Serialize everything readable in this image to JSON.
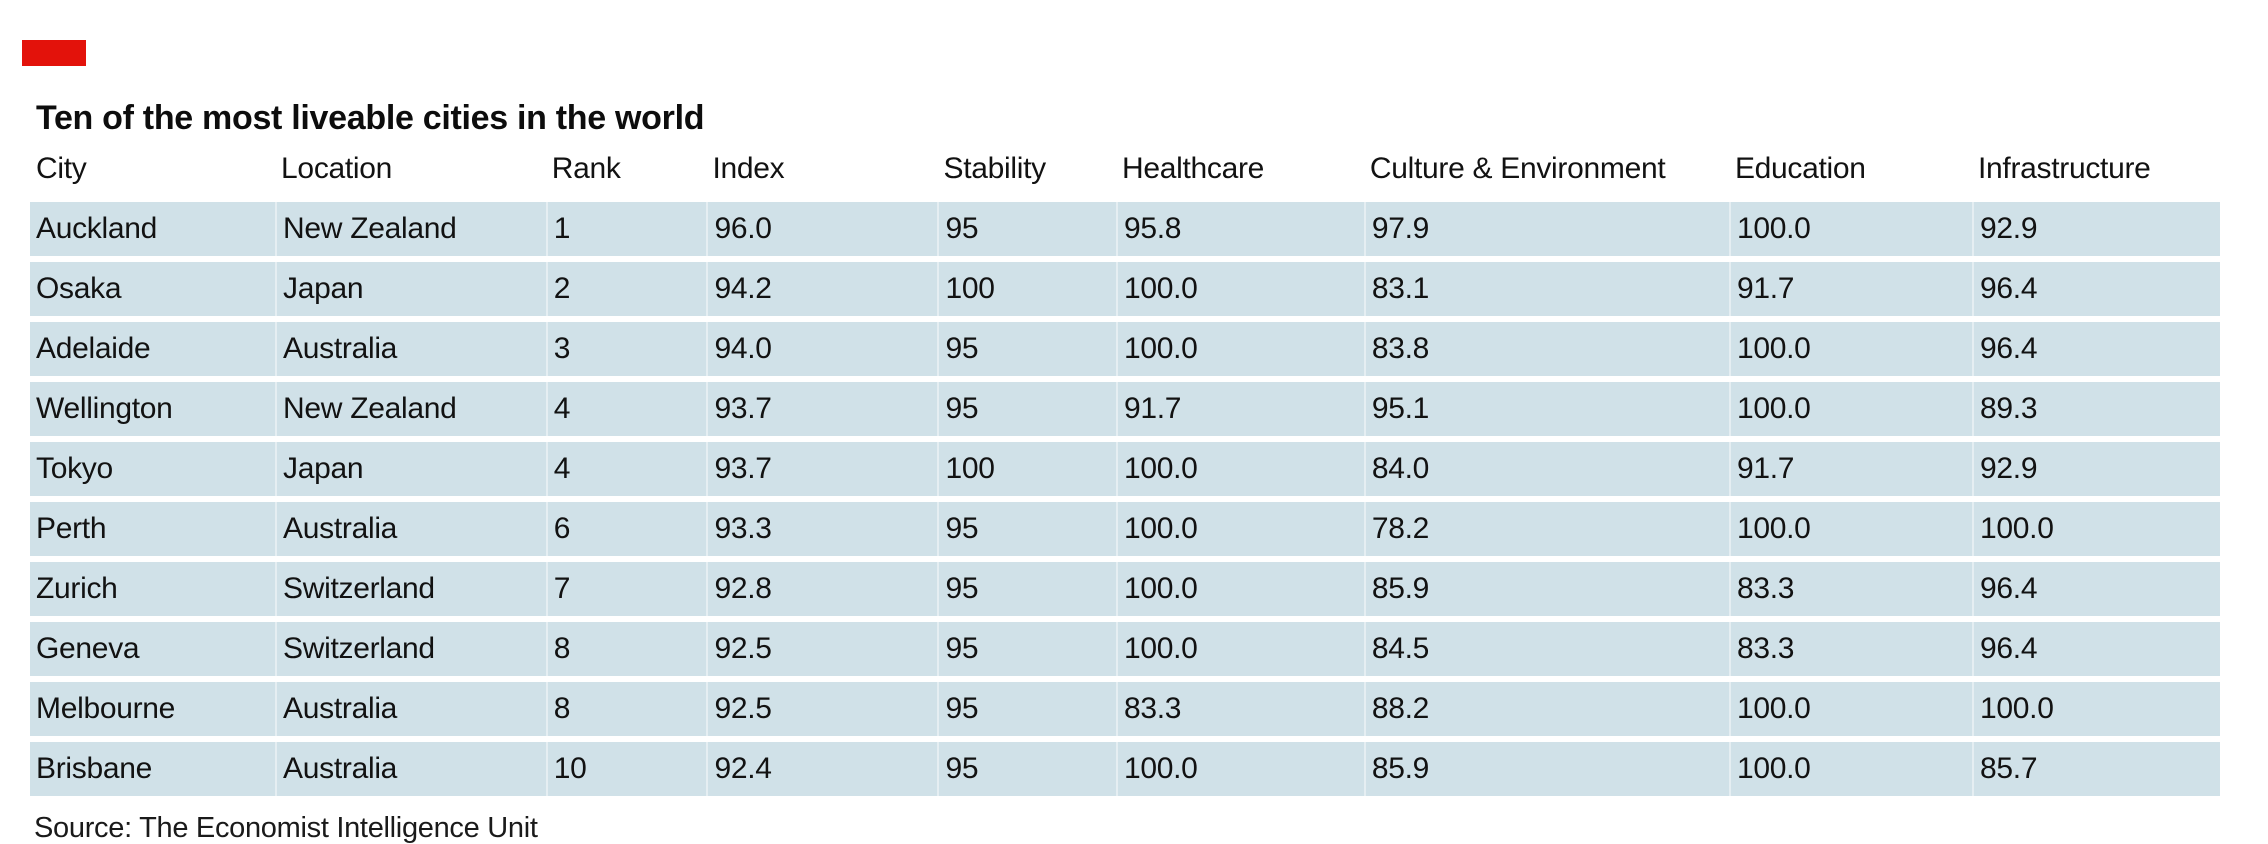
{
  "title": "Ten of the most liveable cities in the world",
  "source": "Source: The Economist Intelligence Unit",
  "colors": {
    "accent": "#e3120b",
    "row_bg": "#d0e1e8",
    "title_text": "#0d0d0d",
    "body_text": "#121212"
  },
  "chart_data": {
    "type": "table",
    "title": "Ten of the most liveable cities in the world",
    "columns": [
      "City",
      "Location",
      "Rank",
      "Index",
      "Stability",
      "Healthcare",
      "Culture & Environment",
      "Education",
      "Infrastructure"
    ],
    "rows": [
      [
        "Auckland",
        "New Zealand",
        "1",
        "96.0",
        "95",
        "95.8",
        "97.9",
        "100.0",
        "92.9"
      ],
      [
        "Osaka",
        "Japan",
        "2",
        "94.2",
        "100",
        "100.0",
        "83.1",
        "91.7",
        "96.4"
      ],
      [
        "Adelaide",
        "Australia",
        "3",
        "94.0",
        "95",
        "100.0",
        "83.8",
        "100.0",
        "96.4"
      ],
      [
        "Wellington",
        "New Zealand",
        "4",
        "93.7",
        "95",
        "91.7",
        "95.1",
        "100.0",
        "89.3"
      ],
      [
        "Tokyo",
        "Japan",
        "4",
        "93.7",
        "100",
        "100.0",
        "84.0",
        "91.7",
        "92.9"
      ],
      [
        "Perth",
        "Australia",
        "6",
        "93.3",
        "95",
        "100.0",
        "78.2",
        "100.0",
        "100.0"
      ],
      [
        "Zurich",
        "Switzerland",
        "7",
        "92.8",
        "95",
        "100.0",
        "85.9",
        "83.3",
        "96.4"
      ],
      [
        "Geneva",
        "Switzerland",
        "8",
        "92.5",
        "95",
        "100.0",
        "84.5",
        "83.3",
        "96.4"
      ],
      [
        "Melbourne",
        "Australia",
        "8",
        "92.5",
        "95",
        "83.3",
        "88.2",
        "100.0",
        "100.0"
      ],
      [
        "Brisbane",
        "Australia",
        "10",
        "92.4",
        "95",
        "100.0",
        "85.9",
        "100.0",
        "85.7"
      ]
    ],
    "source": "Source: The Economist Intelligence Unit",
    "layout": {
      "grid": false,
      "row_banding": true,
      "header_position": "top"
    }
  }
}
